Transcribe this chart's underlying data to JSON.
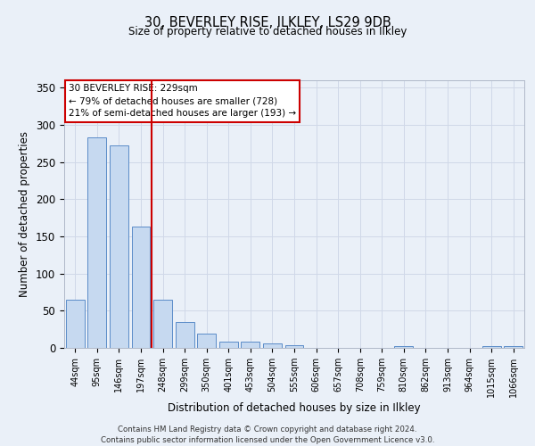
{
  "title": "30, BEVERLEY RISE, ILKLEY, LS29 9DB",
  "subtitle": "Size of property relative to detached houses in Ilkley",
  "xlabel": "Distribution of detached houses by size in Ilkley",
  "ylabel": "Number of detached properties",
  "footer_line1": "Contains HM Land Registry data © Crown copyright and database right 2024.",
  "footer_line2": "Contains public sector information licensed under the Open Government Licence v3.0.",
  "categories": [
    "44sqm",
    "95sqm",
    "146sqm",
    "197sqm",
    "248sqm",
    "299sqm",
    "350sqm",
    "401sqm",
    "453sqm",
    "504sqm",
    "555sqm",
    "606sqm",
    "657sqm",
    "708sqm",
    "759sqm",
    "810sqm",
    "862sqm",
    "913sqm",
    "964sqm",
    "1015sqm",
    "1066sqm"
  ],
  "values": [
    65,
    283,
    272,
    163,
    65,
    35,
    19,
    9,
    9,
    6,
    4,
    0,
    0,
    0,
    0,
    3,
    0,
    0,
    0,
    2,
    2
  ],
  "bar_color": "#c6d9f0",
  "bar_edge_color": "#5b8cc8",
  "grid_color": "#d0d8e8",
  "background_color": "#eaf0f8",
  "vline_x_index": 4,
  "vline_color": "#cc0000",
  "annotation_line1": "30 BEVERLEY RISE: 229sqm",
  "annotation_line2": "← 79% of detached houses are smaller (728)",
  "annotation_line3": "21% of semi-detached houses are larger (193) →",
  "annotation_box_color": "#ffffff",
  "annotation_box_edge": "#cc0000",
  "ylim": [
    0,
    360
  ],
  "yticks": [
    0,
    50,
    100,
    150,
    200,
    250,
    300,
    350
  ]
}
